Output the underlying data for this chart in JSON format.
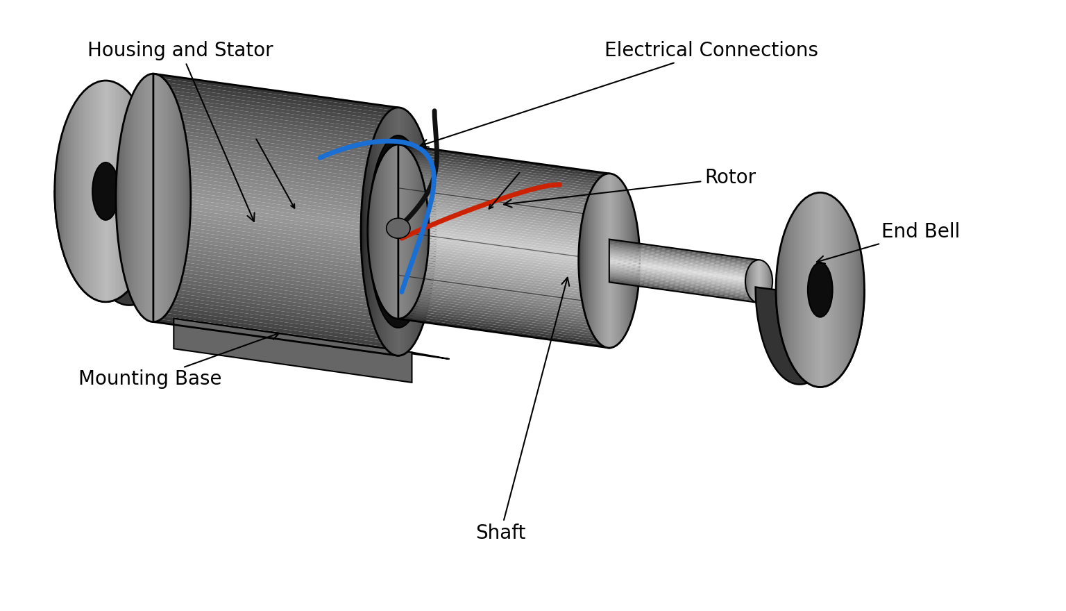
{
  "background_color": "#ffffff",
  "labels": {
    "housing_stator": "Housing and Stator",
    "electrical_connections": "Electrical Connections",
    "rotor": "Rotor",
    "end_bell": "End Bell",
    "mounting_base": "Mounting Base",
    "shaft": "Shaft"
  },
  "colors": {
    "wire_blue": "#1a6fd4",
    "wire_red": "#cc2200",
    "wire_black": "#111111",
    "dark_gray": "#2a2a2a",
    "mid_gray": "#777777",
    "light_gray": "#aaaaaa",
    "highlight": "#cccccc",
    "side_dark": "#444444",
    "black": "#000000"
  },
  "font_size": 20,
  "figsize": [
    15.36,
    8.8
  ],
  "dpi": 100
}
